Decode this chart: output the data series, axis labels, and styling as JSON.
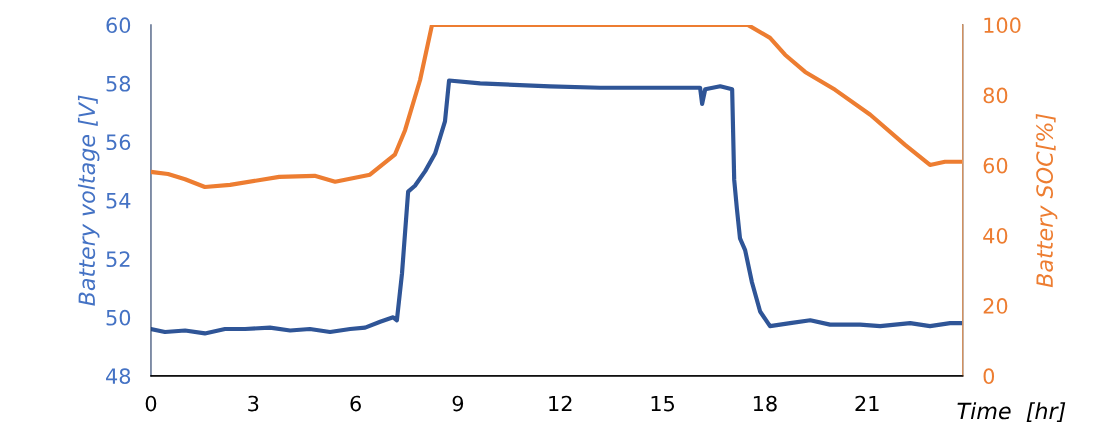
{
  "chart_data": {
    "type": "line",
    "xlabel": "Time  [hr]",
    "ylabel": "Battery voltage [V]",
    "y2label": "Battery SOC[%]",
    "xlim": [
      0,
      23.8
    ],
    "xticks": [
      0,
      3,
      6,
      9,
      12,
      15,
      18,
      21
    ],
    "ylim": [
      48,
      60
    ],
    "yticks": [
      48,
      50,
      52,
      54,
      56,
      58,
      60
    ],
    "y2lim": [
      0,
      100
    ],
    "y2ticks": [
      0,
      20,
      40,
      60,
      80,
      100
    ],
    "grid": false,
    "marker": "none",
    "line_style": "solid",
    "series": [
      {
        "color": "#2f5597",
        "x": [
          0,
          0.41,
          1.0,
          1.58,
          2.17,
          2.76,
          3.49,
          4.08,
          4.66,
          5.25,
          5.84,
          6.28,
          6.72,
          7.1,
          7.21,
          7.36,
          7.54,
          7.74,
          8.04,
          8.33,
          8.62,
          8.74,
          9.65,
          11.7,
          13.17,
          16.1,
          16.16,
          16.25,
          16.69,
          17.04,
          17.1,
          17.18,
          17.27,
          17.42,
          17.62,
          17.86,
          18.15,
          18.74,
          19.33,
          19.91,
          20.79,
          21.38,
          22.26,
          22.84,
          23.43,
          23.8
        ],
        "values": [
          49.6,
          49.5,
          49.55,
          49.45,
          49.6,
          49.6,
          49.65,
          49.55,
          49.6,
          49.5,
          49.6,
          49.65,
          49.85,
          50.0,
          49.9,
          51.5,
          54.3,
          54.5,
          55.0,
          55.6,
          56.7,
          58.1,
          58.0,
          57.9,
          57.85,
          57.85,
          57.3,
          57.8,
          57.9,
          57.8,
          54.7,
          53.7,
          52.7,
          52.3,
          51.2,
          50.2,
          49.7,
          49.8,
          49.9,
          49.75,
          49.75,
          49.7,
          49.8,
          49.7,
          49.8,
          49.8
        ]
      },
      {
        "color": "#ed7d31",
        "axis": "y2",
        "x": [
          0,
          0.5,
          1.0,
          1.58,
          2.32,
          3.76,
          4.8,
          5.4,
          6.42,
          7.15,
          7.45,
          7.89,
          8.24,
          17.5,
          18.15,
          18.59,
          19.18,
          20.06,
          21.09,
          22.11,
          22.84,
          23.28,
          23.8
        ],
        "values": [
          58.1,
          57.5,
          56.0,
          53.8,
          54.4,
          56.7,
          57.0,
          55.3,
          57.3,
          63.0,
          70.0,
          84.3,
          100,
          100,
          96.3,
          91.5,
          86.6,
          81.5,
          74.4,
          65.8,
          60.1,
          61.0,
          61.0
        ]
      }
    ]
  }
}
